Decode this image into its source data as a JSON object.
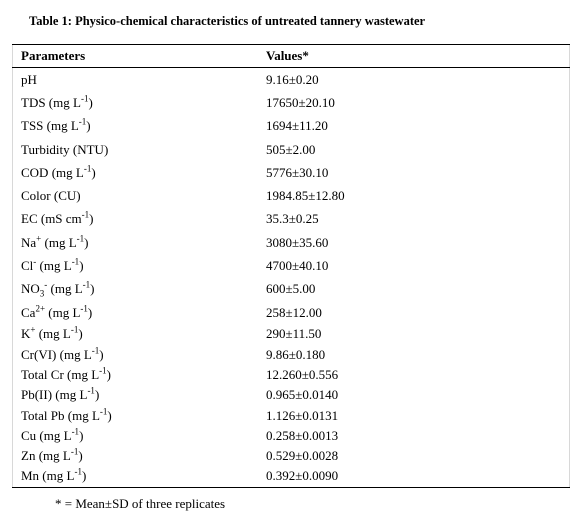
{
  "title": "Table 1: Physico-chemical characteristics of untreated tannery wastewater",
  "table": {
    "header": [
      "Parameters",
      "Values*"
    ],
    "rows": [
      {
        "parameter": [
          "pH"
        ],
        "value": "9.16±0.20"
      },
      {
        "parameter": [
          "TDS (mg L",
          {
            "sup": "-1"
          },
          ")"
        ],
        "value": "17650±20.10"
      },
      {
        "parameter": [
          "TSS (mg L",
          {
            "sup": "-1"
          },
          ")"
        ],
        "value": "1694±11.20"
      },
      {
        "parameter": [
          "Turbidity (NTU)"
        ],
        "value": "505±2.00"
      },
      {
        "parameter": [
          "COD (mg L",
          {
            "sup": "-1"
          },
          ")"
        ],
        "value": "5776±30.10"
      },
      {
        "parameter": [
          "Color (CU)"
        ],
        "value": "1984.85±12.80"
      },
      {
        "parameter": [
          "EC (mS cm",
          {
            "sup": "-1"
          },
          ")"
        ],
        "value": "35.3±0.25"
      },
      {
        "parameter": [
          "Na",
          {
            "sup": "+"
          },
          " (mg L",
          {
            "sup": "-1"
          },
          ")"
        ],
        "value": "3080±35.60"
      },
      {
        "parameter": [
          "Cl",
          {
            "sup": "-"
          },
          " (mg L",
          {
            "sup": "-1"
          },
          ")"
        ],
        "value": "4700±40.10"
      },
      {
        "parameter": [
          "NO",
          {
            "sub": "3"
          },
          {
            "sup": "-"
          },
          " (mg L",
          {
            "sup": "-1"
          },
          ")"
        ],
        "value": "600±5.00"
      },
      {
        "parameter": [
          "Ca",
          {
            "sup": "2+"
          },
          " (mg L",
          {
            "sup": "-1"
          },
          ")"
        ],
        "value": "258±12.00"
      },
      {
        "parameter": [
          "K",
          {
            "sup": "+"
          },
          " (mg L",
          {
            "sup": "-1"
          },
          ")"
        ],
        "value": "290±11.50"
      },
      {
        "parameter": [
          "Cr(VI) (mg L",
          {
            "sup": "-1"
          },
          ")"
        ],
        "value": "9.86±0.180"
      },
      {
        "parameter": [
          "Total Cr (mg L",
          {
            "sup": "-1"
          },
          ")"
        ],
        "value": "12.260±0.556"
      },
      {
        "parameter": [
          "Pb(II) (mg L",
          {
            "sup": "-1"
          },
          ")"
        ],
        "value": "0.965±0.0140"
      },
      {
        "parameter": [
          "Total Pb (mg L",
          {
            "sup": "-1"
          },
          ")"
        ],
        "value": "1.126±0.0131"
      },
      {
        "parameter": [
          "Cu (mg L",
          {
            "sup": "-1"
          },
          ")"
        ],
        "value": "0.258±0.0013"
      },
      {
        "parameter": [
          "Zn (mg L",
          {
            "sup": "-1"
          },
          ")"
        ],
        "value": "0.529±0.0028"
      },
      {
        "parameter": [
          "Mn (mg L",
          {
            "sup": "-1"
          },
          ")"
        ],
        "value": "0.392±0.0090"
      }
    ]
  },
  "footnote": "* = Mean±SD of three replicates"
}
